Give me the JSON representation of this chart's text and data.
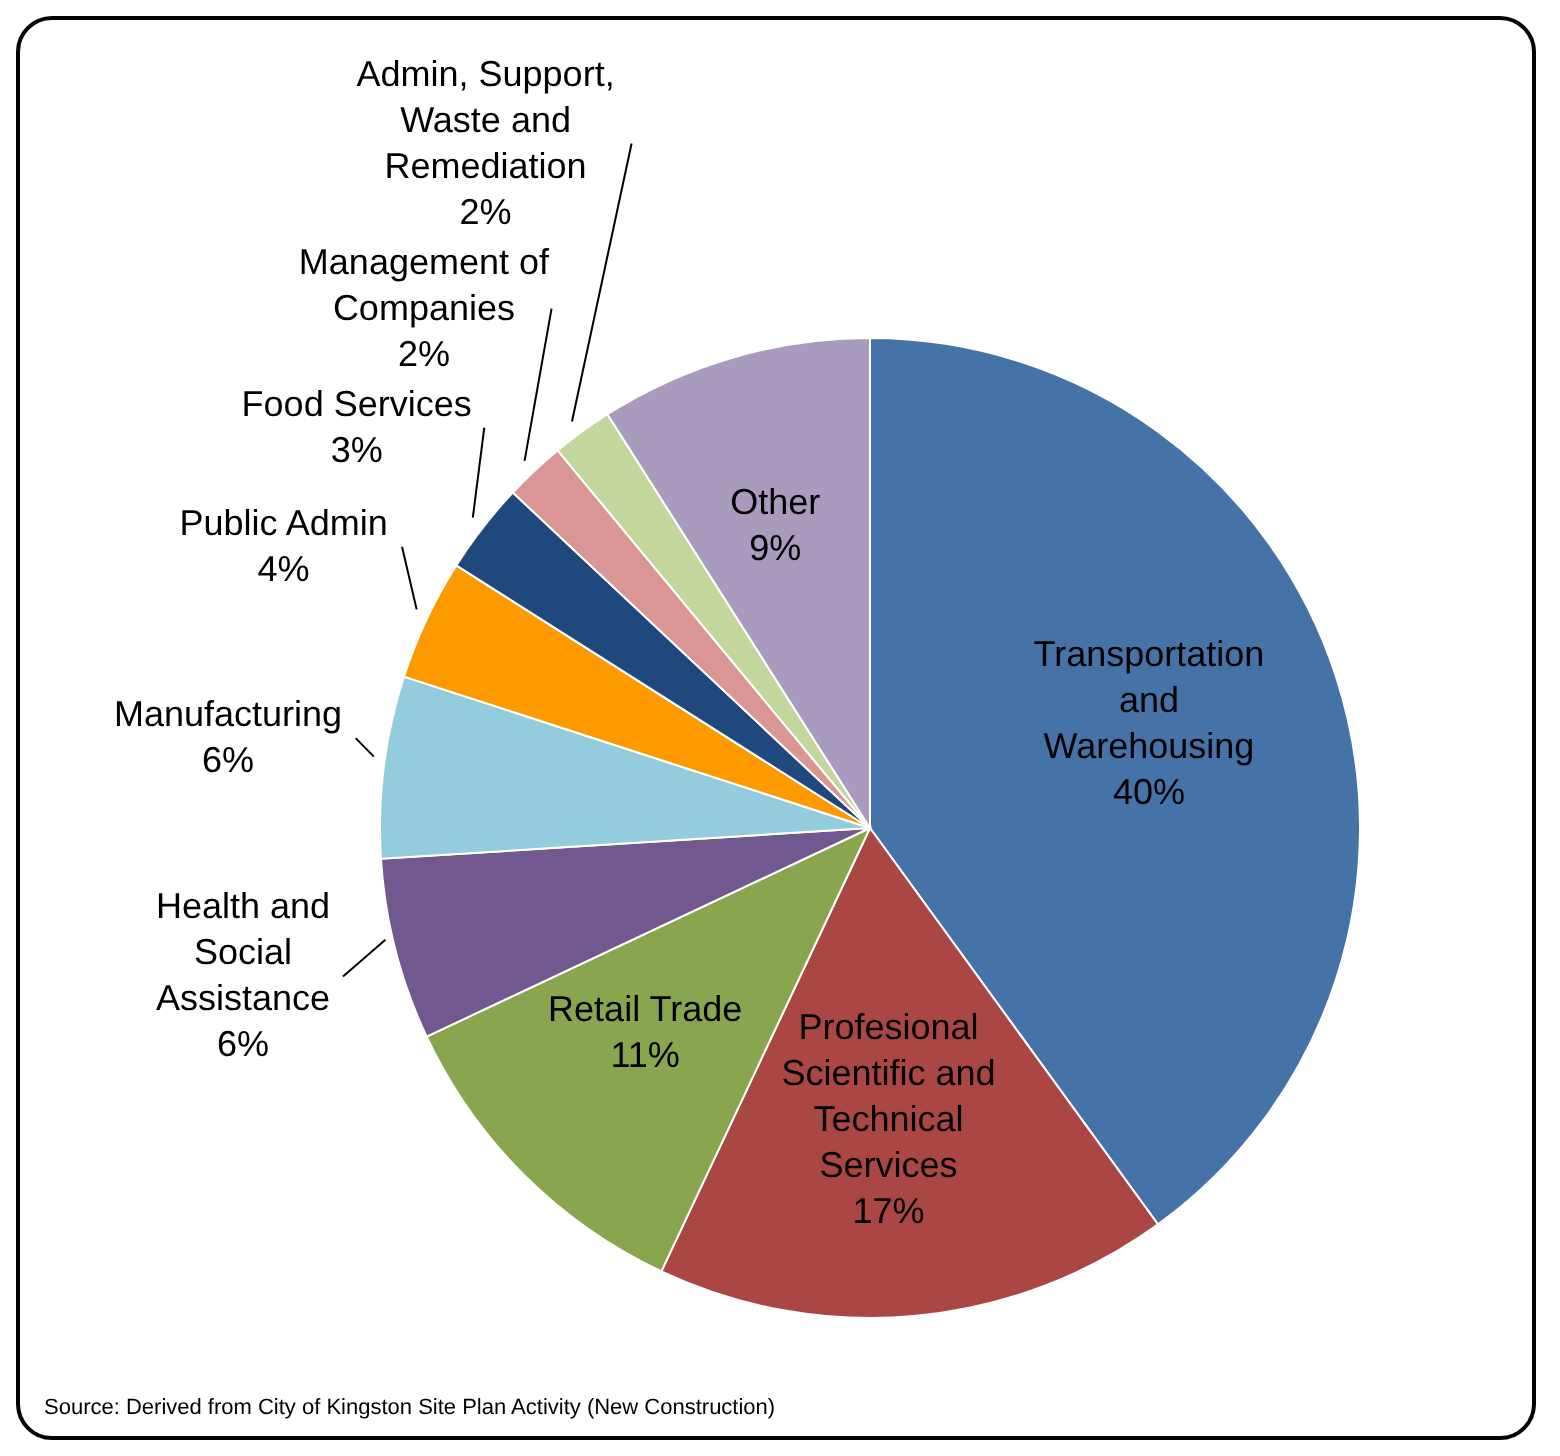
{
  "chart_data": {
    "type": "pie",
    "categories": [
      "Transportation\nand\nWarehousing",
      "Profesional\nScientific and\nTechnical\nServices",
      "Retail Trade",
      "Health and\nSocial\nAssistance",
      "Manufacturing",
      "Public Admin",
      "Food Services",
      "Management of\nCompanies",
      "Admin, Support,\nWaste and\nRemediation",
      "Other"
    ],
    "values": [
      40,
      17,
      11,
      6,
      6,
      4,
      3,
      2,
      2,
      9
    ],
    "value_labels": [
      "40%",
      "17%",
      "11%",
      "6%",
      "6%",
      "4%",
      "3%",
      "2%",
      "2%",
      "9%"
    ],
    "colors": [
      "#4572a7",
      "#aa4643",
      "#89a54e",
      "#71588f",
      "#93cddd",
      "#fd9a00",
      "#1f497d",
      "#d99694",
      "#c3d69b",
      "#a99bbd"
    ],
    "annotations": [
      "Source: Derived from City of Kingston Site Plan Activity (New Construction)"
    ],
    "legend": false
  }
}
